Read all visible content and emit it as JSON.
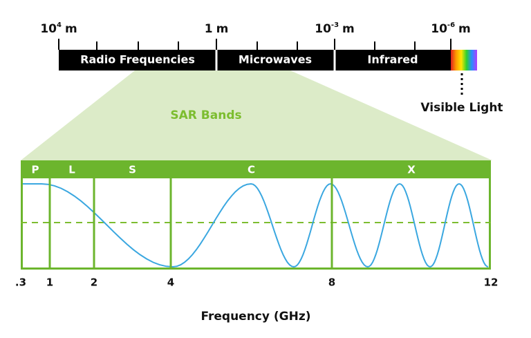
{
  "spectrum": {
    "wavelengths": [
      {
        "base": "10",
        "sup": "4",
        "unit": "m"
      },
      {
        "base": "1",
        "unit": "m"
      },
      {
        "base": "10",
        "sup": "-3",
        "unit": "m"
      },
      {
        "base": "10",
        "sup": "-6",
        "unit": "m"
      }
    ],
    "bands": [
      "Radio Frequencies",
      "Microwaves",
      "Infrared"
    ],
    "visible_label": "Visible Light"
  },
  "sar": {
    "title": "SAR Bands",
    "bands": [
      "P",
      "L",
      "S",
      "C",
      "X"
    ],
    "frequency_ticks": [
      ".3",
      "1",
      "2",
      "4",
      "8",
      "12"
    ],
    "axis_label": "Frequency (GHz)"
  }
}
